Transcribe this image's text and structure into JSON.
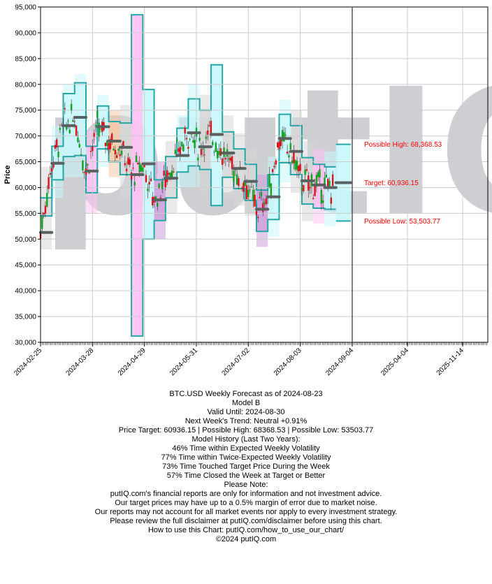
{
  "chart_data": {
    "type": "candlestick-forecast",
    "ylabel": "Price",
    "ylim": [
      30000,
      95000
    ],
    "y_ticks": [
      "30,000",
      "35,000",
      "40,000",
      "45,000",
      "50,000",
      "55,000",
      "60,000",
      "65,000",
      "70,000",
      "75,000",
      "80,000",
      "85,000",
      "90,000",
      "95,000"
    ],
    "x_tick_labels": [
      "2024-02-25",
      "2024-03-28",
      "2024-04-29",
      "2024-05-31",
      "2024-07-02",
      "2024-08-03",
      "2024-09-04",
      "2025-04-04",
      "2025-11-14"
    ],
    "forecast_date": "2024-08-23",
    "watermark": "putIQ",
    "annotations": {
      "high": "Possible High: 68,368.53",
      "target": "Target: 60,936.15",
      "low": "Possible Low: 53,503.77"
    },
    "forecast": {
      "target": 60936.15,
      "high": 68368.53,
      "low": 53503.77
    },
    "weekly_bands": [
      {
        "start": "2024-02-25",
        "mid": 51300,
        "lo1": 54500,
        "hi1": 58000,
        "lo2": 48000,
        "hi2": 64000,
        "color": "gray"
      },
      {
        "start": "2024-03-03",
        "mid": 64700,
        "lo1": 61500,
        "hi1": 68000,
        "lo2": 58000,
        "hi2": 72000,
        "color": "cyan"
      },
      {
        "start": "2024-03-10",
        "mid": 72000,
        "lo1": 66000,
        "hi1": 78200,
        "lo2": 62000,
        "hi2": 80000,
        "color": "cyan"
      },
      {
        "start": "2024-03-17",
        "mid": 73600,
        "lo1": 66200,
        "hi1": 80300,
        "lo2": 62000,
        "hi2": 82000,
        "color": "cyan"
      },
      {
        "start": "2024-03-24",
        "mid": 63200,
        "lo1": 59000,
        "hi1": 68000,
        "lo2": 55000,
        "hi2": 71000,
        "color": "pink"
      },
      {
        "start": "2024-03-31",
        "mid": 71800,
        "lo1": 67500,
        "hi1": 75800,
        "lo2": 64000,
        "hi2": 78000,
        "color": "cyan"
      },
      {
        "start": "2024-04-07",
        "mid": 69000,
        "lo1": 65000,
        "hi1": 72800,
        "lo2": 62000,
        "hi2": 75000,
        "color": "orange"
      },
      {
        "start": "2024-04-14",
        "mid": 67800,
        "lo1": 62500,
        "hi1": 72500,
        "lo2": 58000,
        "hi2": 76000,
        "color": "gray"
      },
      {
        "start": "2024-04-21",
        "mid": 62500,
        "lo1": 31200,
        "hi1": 93500,
        "lo2": 31200,
        "hi2": 93500,
        "color": "pink"
      },
      {
        "start": "2024-04-28",
        "mid": 64600,
        "lo1": 50000,
        "hi1": 79000,
        "lo2": 50000,
        "hi2": 79000,
        "color": "cyan"
      },
      {
        "start": "2024-05-05",
        "mid": 57600,
        "lo1": 53600,
        "hi1": 61500,
        "lo2": 50000,
        "hi2": 65000,
        "color": "purple"
      },
      {
        "start": "2024-05-12",
        "mid": 61800,
        "lo1": 58000,
        "hi1": 66000,
        "lo2": 55000,
        "hi2": 69000,
        "color": "gray"
      },
      {
        "start": "2024-05-19",
        "mid": 66200,
        "lo1": 63000,
        "hi1": 71500,
        "lo2": 60000,
        "hi2": 74000,
        "color": "cyan"
      },
      {
        "start": "2024-05-26",
        "mid": 70600,
        "lo1": 64200,
        "hi1": 77200,
        "lo2": 60000,
        "hi2": 80000,
        "color": "cyan"
      },
      {
        "start": "2024-06-02",
        "mid": 67900,
        "lo1": 63500,
        "hi1": 75000,
        "lo2": 59500,
        "hi2": 78000,
        "color": "gray"
      },
      {
        "start": "2024-06-09",
        "mid": 70300,
        "lo1": 56500,
        "hi1": 83800,
        "lo2": 56500,
        "hi2": 83800,
        "color": "cyan"
      },
      {
        "start": "2024-06-16",
        "mid": 66700,
        "lo1": 62000,
        "hi1": 70800,
        "lo2": 58000,
        "hi2": 74000,
        "color": "gray"
      },
      {
        "start": "2024-06-23",
        "mid": 63700,
        "lo1": 59800,
        "hi1": 67500,
        "lo2": 56500,
        "hi2": 70500,
        "color": "gray"
      },
      {
        "start": "2024-06-30",
        "mid": 61200,
        "lo1": 57500,
        "hi1": 64500,
        "lo2": 54500,
        "hi2": 67500,
        "color": "gray"
      },
      {
        "start": "2024-07-07",
        "mid": 55800,
        "lo1": 51500,
        "hi1": 59500,
        "lo2": 48500,
        "hi2": 62500,
        "color": "purple"
      },
      {
        "start": "2024-07-14",
        "mid": 58200,
        "lo1": 53800,
        "hi1": 62500,
        "lo2": 50500,
        "hi2": 66000,
        "color": "cyan"
      },
      {
        "start": "2024-07-21",
        "mid": 69500,
        "lo1": 64800,
        "hi1": 74200,
        "lo2": 61000,
        "hi2": 77000,
        "color": "cyan"
      },
      {
        "start": "2024-07-28",
        "mid": 67000,
        "lo1": 62500,
        "hi1": 72000,
        "lo2": 59000,
        "hi2": 75000,
        "color": "gray"
      },
      {
        "start": "2024-08-04",
        "mid": 61300,
        "lo1": 56800,
        "hi1": 65800,
        "lo2": 53500,
        "hi2": 69000,
        "color": "gray"
      },
      {
        "start": "2024-08-11",
        "mid": 60500,
        "lo1": 56000,
        "hi1": 64500,
        "lo2": 53000,
        "hi2": 67500,
        "color": "pink"
      },
      {
        "start": "2024-08-18",
        "mid": 60000,
        "lo1": 55800,
        "hi1": 64000,
        "lo2": 52500,
        "hi2": 67000,
        "color": "cyan"
      }
    ],
    "colors": {
      "cyan": "#c8f7fb",
      "pink": "#ffc2f2",
      "purple": "#cc9fdb",
      "gray": "#d7d7d7",
      "orange": "#f6c9a8",
      "outline": "#26a7a7",
      "midline": "#5a6161",
      "up": "#10a320",
      "down": "#e0101a",
      "annotation": "#ff0000",
      "forecast_line": "#555555"
    }
  },
  "footer": {
    "lines": [
      "BTC.USD Weekly Forecast as of 2024-08-23",
      "Model B",
      "Valid Until: 2024-08-30",
      "Next Week's Trend: Neutral +0.91%",
      "Price Target: 60936.15 | Possible High: 68368.53 | Possible Low: 53503.77",
      "Model History (Last Two Years):",
      "46% Time within Expected Weekly Volatility",
      "77% Time within Twice-Expected Weekly Volatility",
      "73% Time Touched Target Price During the Week",
      "57% Time Closed the Week at Target or Better",
      "Please Note:",
      "putIQ.com's financial reports are only for information and not investment advice.",
      "Our target prices may have up to a 0.5% margin of error due to market noise.",
      "Our reports may not account for all market events nor apply to every investment strategy.",
      "Please review the full disclaimer at putIQ.com/disclaimer before using this chart.",
      "How to use this Chart: putIQ.com/how_to_use_our_chart/",
      "©2024 putIQ.com"
    ]
  }
}
